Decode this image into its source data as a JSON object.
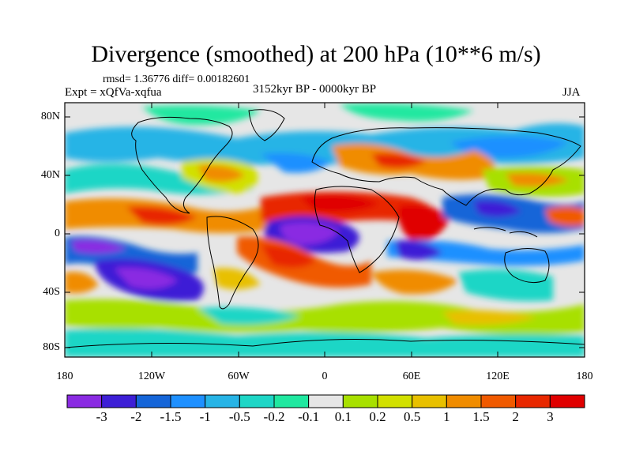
{
  "title": "Divergence (smoothed) at 200 hPa (10**6 m/s)",
  "stats": "rmsd= 1.36776 diff= 0.00182601",
  "experiment": "Expt = xQfVa-xqfua",
  "period": "3152kyr BP - 0000kyr BP",
  "season": "JJA",
  "lat_labels": [
    "80N",
    "40N",
    "0",
    "40S",
    "80S"
  ],
  "lon_labels": [
    "180",
    "120W",
    "60W",
    "0",
    "60E",
    "120E",
    "180"
  ],
  "colorbar": {
    "labels": [
      "-3",
      "-2",
      "-1.5",
      "-1",
      "-0.5",
      "-0.2",
      "-0.1",
      "0.1",
      "0.2",
      "0.5",
      "1",
      "1.5",
      "2",
      "3"
    ],
    "colors": [
      "#8a2be2",
      "#3d1fd6",
      "#1565d8",
      "#1e90ff",
      "#27b4e6",
      "#1ed6c6",
      "#20e8a0",
      "#e6e6e6",
      "#a8e000",
      "#d2e000",
      "#e8c000",
      "#f08c00",
      "#f05a00",
      "#e82800",
      "#e00000"
    ]
  },
  "colors": {
    "neutral": "#e6e6e6",
    "coast": "#000000"
  }
}
